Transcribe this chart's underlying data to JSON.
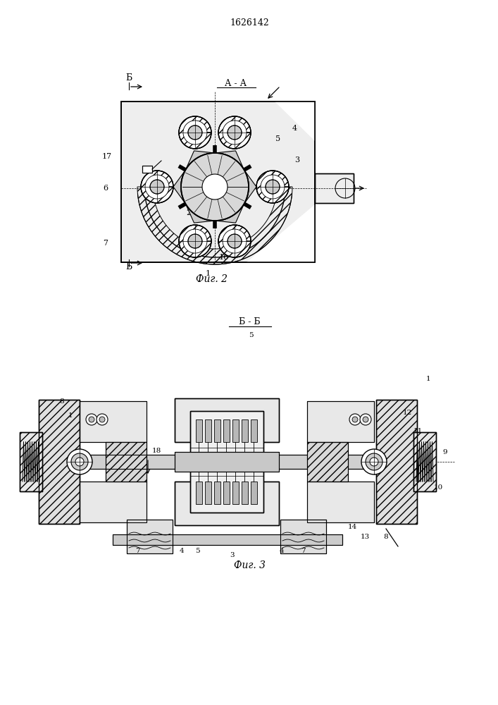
{
  "patent_number": "1626142",
  "fig2_label": "Фиг. 2",
  "fig3_label": "Фиг. 3",
  "section_aa": "А - А",
  "section_bb": "Б - Б",
  "bg_color": "#ffffff",
  "line_color": "#000000"
}
